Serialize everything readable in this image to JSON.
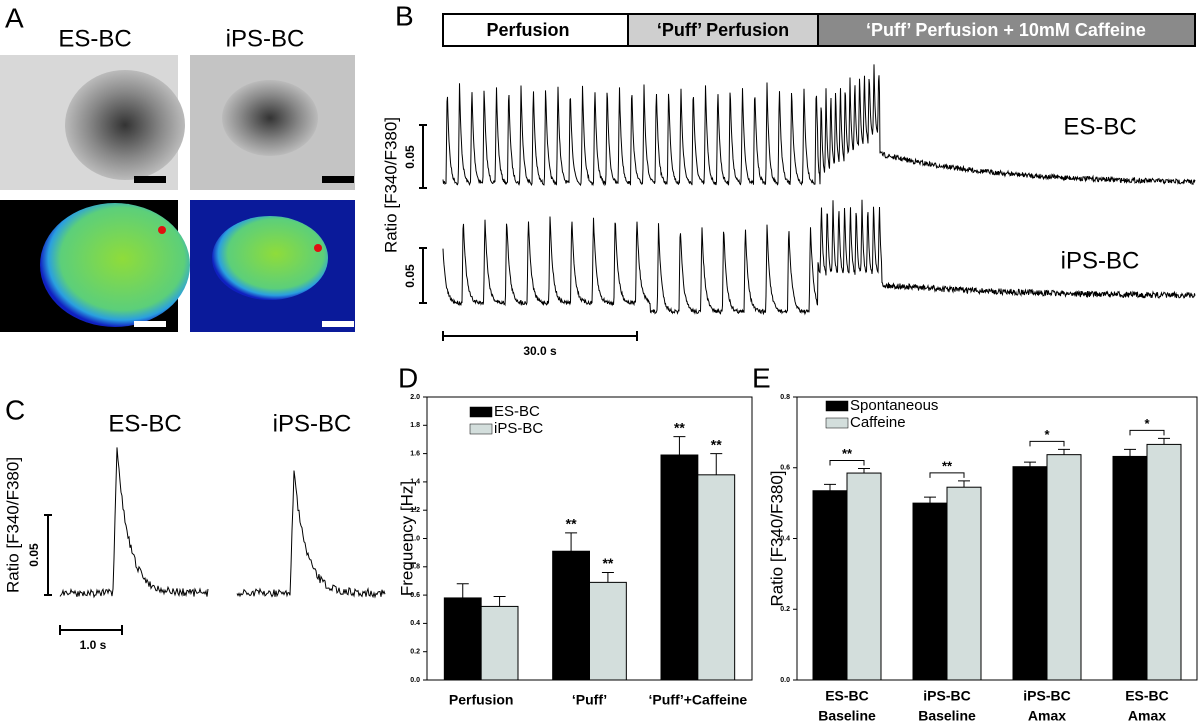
{
  "panels": {
    "A": {
      "label": "A",
      "titles": [
        "ES-BC",
        "iPS-BC"
      ]
    },
    "B": {
      "label": "B",
      "phases": [
        "Perfusion",
        "‘Puff’ Perfusion",
        "‘Puff’ Perfusion + 10mM Caffeine"
      ],
      "traces": [
        "ES-BC",
        "iPS-BC"
      ],
      "ylabel": "Ratio [F340/F380]",
      "scale_y": "0.05",
      "scale_x": "30.0 s"
    },
    "C": {
      "label": "C",
      "titles": [
        "ES-BC",
        "iPS-BC"
      ],
      "ylabel": "Ratio [F340/F380]",
      "scale_y": "0.05",
      "scale_x": "1.0 s"
    }
  },
  "chart_data": [
    {
      "type": "bar",
      "panel": "D",
      "ylabel": "Frequency [Hz]",
      "categories": [
        "Perfusion",
        "‘Puff’",
        "‘Puff’+Caffeine"
      ],
      "ylim": [
        0,
        2
      ],
      "yticks": [
        {
          "value": 0,
          "label": "0.0"
        },
        0.2,
        0.4,
        0.6,
        0.8,
        {
          "value": 1,
          "label": "1.0"
        },
        1.2,
        1.4,
        1.6,
        1.8,
        {
          "value": 2,
          "label": "2.0"
        }
      ],
      "series": [
        {
          "name": "ES-BC",
          "color": "#000000",
          "values": [
            0.58,
            0.91,
            1.59
          ],
          "errors": [
            0.1,
            0.13,
            0.13
          ],
          "annotations": [
            null,
            "**",
            "**"
          ]
        },
        {
          "name": "iPS-BC",
          "color": "#d3dedc",
          "values": [
            0.52,
            0.69,
            1.45
          ],
          "errors": [
            0.07,
            0.07,
            0.15
          ],
          "annotations": [
            null,
            "**",
            "**"
          ]
        }
      ]
    },
    {
      "type": "bar",
      "panel": "E",
      "ylabel": "Ratio [F340/F380]",
      "categories": [
        [
          "ES-BC",
          "Baseline"
        ],
        [
          "iPS-BC",
          "Baseline"
        ],
        [
          "iPS-BC",
          "Amax"
        ],
        [
          "ES-BC",
          "Amax"
        ]
      ],
      "ylim": [
        0,
        0.8
      ],
      "yticks": [
        {
          "value": 0,
          "label": "0.0"
        },
        0.2,
        0.4,
        0.6,
        0.8
      ],
      "series": [
        {
          "name": "Spontaneous",
          "color": "#000000",
          "values": [
            0.535,
            0.5,
            0.603,
            0.632
          ],
          "errors": [
            0.018,
            0.017,
            0.013,
            0.02
          ]
        },
        {
          "name": "Caffeine",
          "color": "#d3dedc",
          "values": [
            0.585,
            0.545,
            0.637,
            0.666
          ],
          "errors": [
            0.013,
            0.018,
            0.015,
            0.017
          ]
        }
      ],
      "comparisons": [
        "**",
        "**",
        "*",
        "*"
      ]
    }
  ]
}
